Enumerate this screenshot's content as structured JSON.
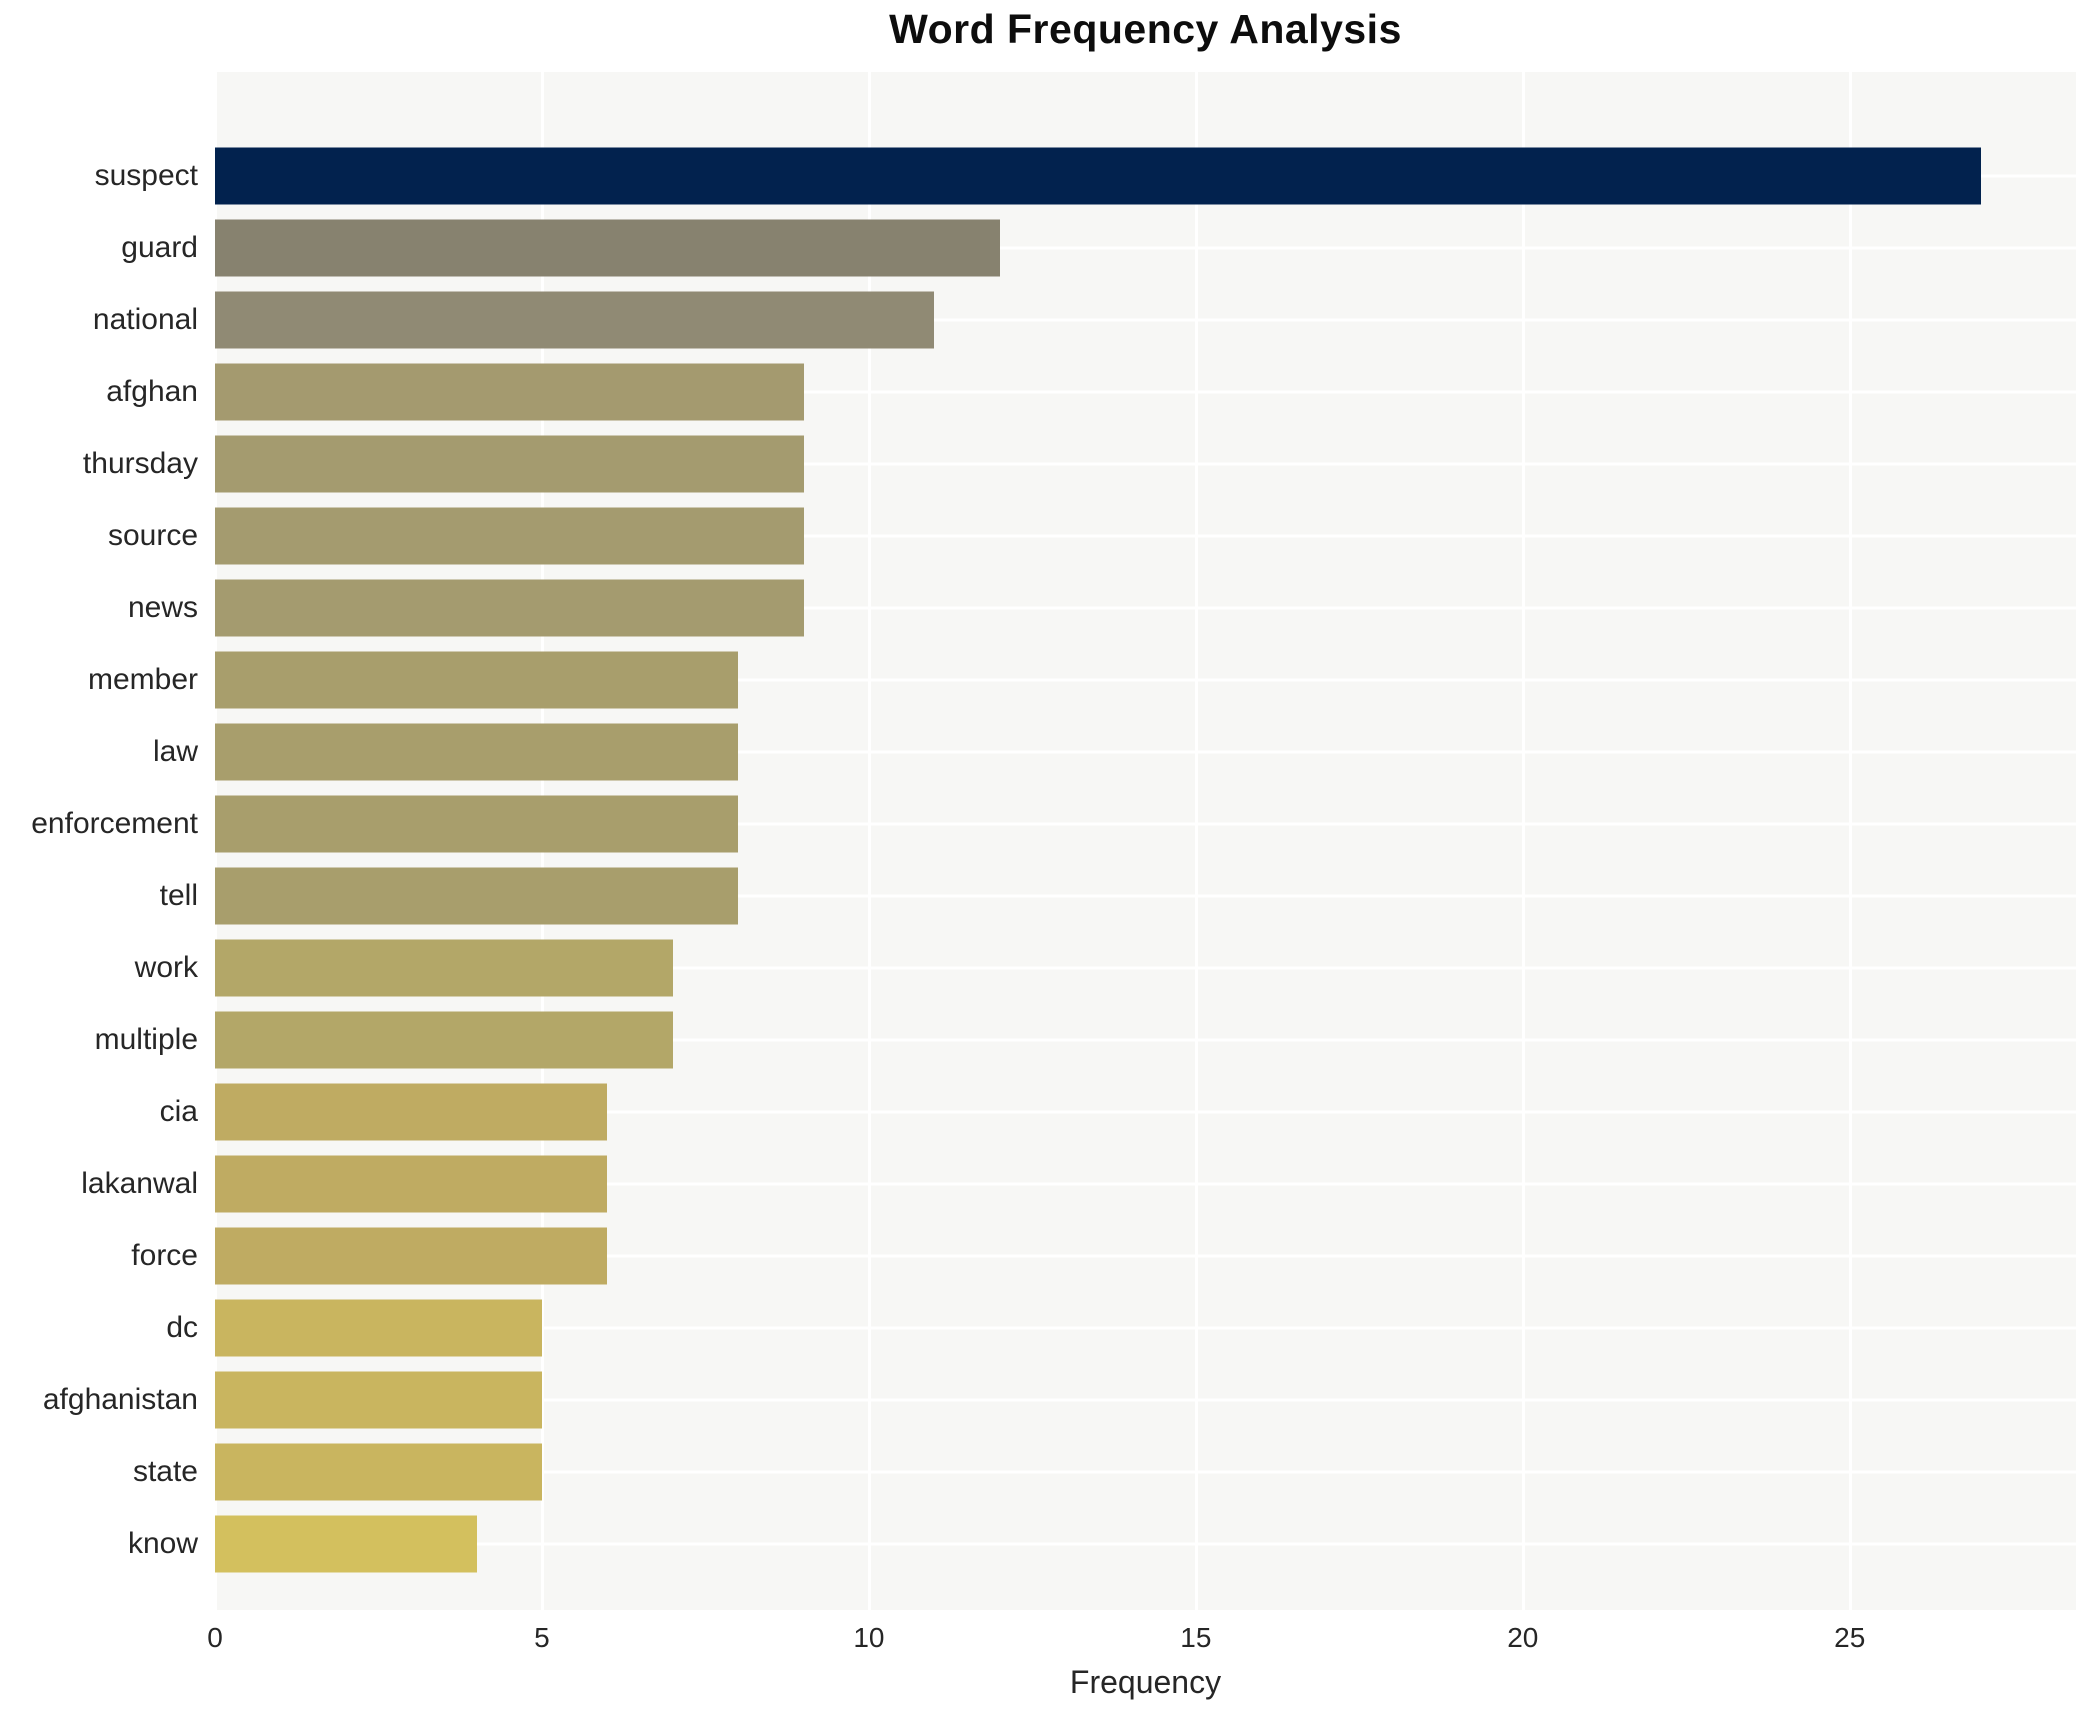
{
  "title": "Word Frequency Analysis",
  "xlabel": "Frequency",
  "chart_data": {
    "type": "bar",
    "orientation": "horizontal",
    "title": "Word Frequency Analysis",
    "xlabel": "Frequency",
    "ylabel": "",
    "categories": [
      "suspect",
      "guard",
      "national",
      "afghan",
      "thursday",
      "source",
      "news",
      "member",
      "law",
      "enforcement",
      "tell",
      "work",
      "multiple",
      "cia",
      "lakanwal",
      "force",
      "dc",
      "afghanistan",
      "state",
      "know"
    ],
    "values": [
      27,
      12,
      11,
      9,
      9,
      9,
      9,
      8,
      8,
      8,
      8,
      7,
      7,
      6,
      6,
      6,
      5,
      5,
      5,
      4
    ],
    "bar_colors": [
      "#02224e",
      "#87826f",
      "#908a74",
      "#a49a6f",
      "#a49b6f",
      "#a49b6f",
      "#a49b6f",
      "#a89e6c",
      "#a89e6c",
      "#a89e6c",
      "#a89e6c",
      "#b3a768",
      "#b3a768",
      "#bfab62",
      "#bfab62",
      "#bfab62",
      "#c9b55f",
      "#c9b55f",
      "#c9b55f",
      "#d3c05e"
    ],
    "xlim": [
      0,
      28.46
    ],
    "xticks": [
      0,
      5,
      10,
      15,
      20,
      25
    ],
    "grid": true,
    "legend": false,
    "plot_background": "#f7f7f5",
    "gridline_color": "#ffffff",
    "outer_background": "#ffffff",
    "text_color": "#262626"
  }
}
